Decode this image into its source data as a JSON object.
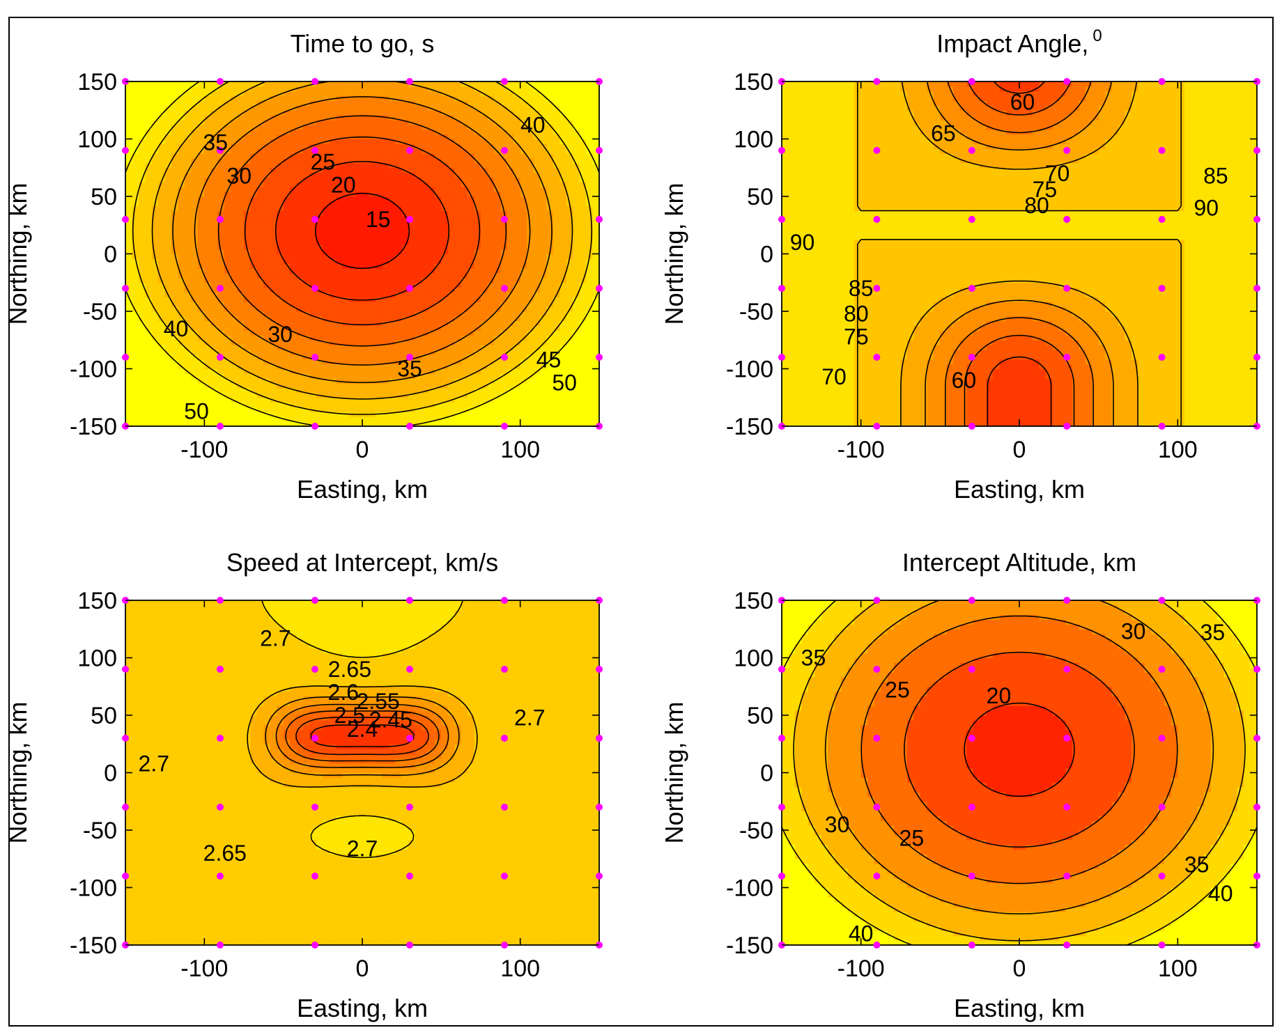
{
  "chart_data": [
    {
      "type": "contourf",
      "title": "Time to go, s",
      "xlabel": "Easting, km",
      "ylabel": "Northing, km",
      "xlim": [
        -150,
        150
      ],
      "ylim": [
        -150,
        150
      ],
      "xticks": [
        -100,
        0,
        100
      ],
      "yticks": [
        150,
        100,
        50,
        0,
        -50,
        -100,
        -150
      ],
      "contour_labels": [
        {
          "text": "15",
          "x": 10,
          "y": 30
        },
        {
          "text": "20",
          "x": -12,
          "y": 60
        },
        {
          "text": "25",
          "x": -25,
          "y": 80
        },
        {
          "text": "30",
          "x": -78,
          "y": 68
        },
        {
          "text": "35",
          "x": -93,
          "y": 97
        },
        {
          "text": "40",
          "x": 108,
          "y": 112
        },
        {
          "text": "40",
          "x": -118,
          "y": -65
        },
        {
          "text": "30",
          "x": -52,
          "y": -70
        },
        {
          "text": "35",
          "x": 30,
          "y": -100
        },
        {
          "text": "45",
          "x": 118,
          "y": -92
        },
        {
          "text": "50",
          "x": 128,
          "y": -112
        },
        {
          "text": "50",
          "x": -105,
          "y": -137
        }
      ]
    },
    {
      "type": "contourf",
      "title": "Impact Angle,",
      "title_superscript": "0",
      "xlabel": "Easting, km",
      "ylabel": "Northing, km",
      "xlim": [
        -150,
        150
      ],
      "ylim": [
        -150,
        150
      ],
      "xticks": [
        -100,
        0,
        100
      ],
      "yticks": [
        150,
        100,
        50,
        0,
        -50,
        -100,
        -150
      ],
      "contour_labels": [
        {
          "text": "60",
          "x": 2,
          "y": 132
        },
        {
          "text": "65",
          "x": -48,
          "y": 105
        },
        {
          "text": "70",
          "x": 24,
          "y": 70
        },
        {
          "text": "75",
          "x": 16,
          "y": 56
        },
        {
          "text": "80",
          "x": 11,
          "y": 42
        },
        {
          "text": "85",
          "x": 124,
          "y": 68
        },
        {
          "text": "90",
          "x": 118,
          "y": 40
        },
        {
          "text": "90",
          "x": -137,
          "y": 10
        },
        {
          "text": "85",
          "x": -100,
          "y": -30
        },
        {
          "text": "80",
          "x": -103,
          "y": -52
        },
        {
          "text": "75",
          "x": -103,
          "y": -72
        },
        {
          "text": "70",
          "x": -117,
          "y": -107
        },
        {
          "text": "60",
          "x": -35,
          "y": -110
        }
      ]
    },
    {
      "type": "contourf",
      "title": "Speed at Intercept, km/s",
      "xlabel": "Easting, km",
      "ylabel": "Northing, km",
      "xlim": [
        -150,
        150
      ],
      "ylim": [
        -150,
        150
      ],
      "xticks": [
        -100,
        0,
        100
      ],
      "yticks": [
        150,
        100,
        50,
        0,
        -50,
        -100,
        -150
      ],
      "contour_labels": [
        {
          "text": "2.7",
          "x": -55,
          "y": 117
        },
        {
          "text": "2.65",
          "x": -8,
          "y": 90
        },
        {
          "text": "2.6",
          "x": -12,
          "y": 70
        },
        {
          "text": "2.55",
          "x": 10,
          "y": 62
        },
        {
          "text": "2.5",
          "x": -8,
          "y": 50
        },
        {
          "text": "2.45",
          "x": 18,
          "y": 46
        },
        {
          "text": "2.4",
          "x": 0,
          "y": 38
        },
        {
          "text": "2.7",
          "x": 106,
          "y": 48
        },
        {
          "text": "2.7",
          "x": -132,
          "y": 8
        },
        {
          "text": "2.7",
          "x": 0,
          "y": -66
        },
        {
          "text": "2.65",
          "x": -87,
          "y": -70
        }
      ]
    },
    {
      "type": "contourf",
      "title": "Intercept Altitude, km",
      "xlabel": "Easting, km",
      "ylabel": "Northing, km",
      "xlim": [
        -150,
        150
      ],
      "ylim": [
        -150,
        150
      ],
      "xticks": [
        -100,
        0,
        100
      ],
      "yticks": [
        150,
        100,
        50,
        0,
        -50,
        -100,
        -150
      ],
      "contour_labels": [
        {
          "text": "20",
          "x": -13,
          "y": 67
        },
        {
          "text": "25",
          "x": -77,
          "y": 72
        },
        {
          "text": "30",
          "x": 72,
          "y": 123
        },
        {
          "text": "35",
          "x": -130,
          "y": 100
        },
        {
          "text": "35",
          "x": 122,
          "y": 122
        },
        {
          "text": "30",
          "x": -115,
          "y": -45
        },
        {
          "text": "25",
          "x": -68,
          "y": -57
        },
        {
          "text": "35",
          "x": 112,
          "y": -80
        },
        {
          "text": "40",
          "x": 127,
          "y": -105
        },
        {
          "text": "40",
          "x": -100,
          "y": -140
        }
      ]
    }
  ]
}
